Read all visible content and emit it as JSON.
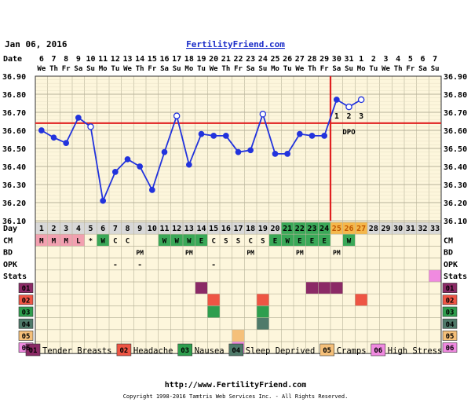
{
  "header": {
    "date": "Jan 06, 2016",
    "site": "FertilityFriend.com"
  },
  "footer": {
    "url": "http://www.FertilityFriend.com",
    "copyright": "Copyright 1998-2016 Tamtris Web Services Inc. - All Rights Reserved."
  },
  "colors": {
    "grid_bg": "#fdf6dc",
    "grid_line": "#b8b39a",
    "temp_line": "#2233dd",
    "coverline": "#e02020",
    "stat_01": "#8b2a66",
    "stat_02": "#ee5544",
    "stat_03": "#2e9e4e",
    "stat_04": "#4f7a6a",
    "stat_05": "#f5c07a",
    "stat_06": "#f08ae0",
    "cm_menstrual": "#f2a0b0",
    "cm_fertile": "#3aa858",
    "ovulation_days": "#f5b84c",
    "ovulation_days_text": "#c05800"
  },
  "chart_data": {
    "type": "line",
    "title": "",
    "ylim": [
      36.1,
      36.9
    ],
    "yticks": [
      "36.90",
      "36.80",
      "36.70",
      "36.60",
      "36.50",
      "36.40",
      "36.30",
      "36.20",
      "36.10"
    ],
    "row_labels": {
      "date": "Date",
      "day": "Day",
      "cm": "CM",
      "bd": "BD",
      "opk": "OPK",
      "stats": "Stats"
    },
    "dates": [
      "6",
      "7",
      "8",
      "9",
      "10",
      "11",
      "12",
      "13",
      "14",
      "15",
      "16",
      "17",
      "18",
      "19",
      "20",
      "21",
      "22",
      "23",
      "24",
      "25",
      "26",
      "27",
      "28",
      "29",
      "30",
      "31",
      "1",
      "2",
      "3",
      "4",
      "5",
      "6",
      "7"
    ],
    "weekdays": [
      "We",
      "Th",
      "Fr",
      "Sa",
      "Su",
      "Mo",
      "Tu",
      "We",
      "Th",
      "Fr",
      "Sa",
      "Su",
      "Mo",
      "Tu",
      "We",
      "Th",
      "Fr",
      "Sa",
      "Su",
      "Mo",
      "Tu",
      "We",
      "Th",
      "Fr",
      "Sa",
      "Su",
      "Mo",
      "Tu",
      "We",
      "Th",
      "Fr",
      "Sa",
      "Su"
    ],
    "days": [
      1,
      2,
      3,
      4,
      5,
      6,
      7,
      8,
      9,
      10,
      11,
      12,
      13,
      14,
      15,
      16,
      17,
      18,
      19,
      20,
      21,
      22,
      23,
      24,
      25,
      26,
      27,
      28,
      29,
      30,
      31,
      32,
      33
    ],
    "temps": [
      36.6,
      36.56,
      36.53,
      36.67,
      36.62,
      36.21,
      36.37,
      36.44,
      36.4,
      36.27,
      36.48,
      36.68,
      36.41,
      36.58,
      36.57,
      36.57,
      36.48,
      36.49,
      36.69,
      36.47,
      36.47,
      36.58,
      36.57,
      36.57,
      36.77,
      36.73,
      36.77,
      null,
      null,
      null,
      null,
      null,
      null
    ],
    "open_points": [
      4,
      11,
      18,
      25,
      26
    ],
    "coverline": 36.64,
    "ovulation_day": 24,
    "dpo_labels": [
      "1",
      "2",
      "3"
    ],
    "dpo_text": "DPO",
    "cm": [
      "M",
      "M",
      "M",
      "L",
      "*",
      "W",
      "C",
      "C",
      "",
      "",
      "W",
      "W",
      "W",
      "E",
      "C",
      "S",
      "S",
      "C",
      "S",
      "E",
      "W",
      "E",
      "E",
      "E",
      "",
      "W",
      "",
      "",
      "",
      "",
      "",
      "",
      ""
    ],
    "bd": [
      "",
      "",
      "",
      "",
      "",
      "",
      "",
      "",
      "PM",
      "",
      "",
      "",
      "PM",
      "",
      "",
      "",
      "",
      "PM",
      "",
      "",
      "",
      "PM",
      "",
      "",
      "PM",
      "",
      "",
      "",
      "",
      "",
      "",
      "",
      ""
    ],
    "opk": [
      "",
      "",
      "",
      "",
      "",
      "",
      "-",
      "",
      "-",
      "",
      "",
      "",
      "",
      "",
      "-",
      "",
      "",
      "",
      "",
      "",
      "",
      "",
      "",
      "",
      "",
      "",
      "",
      "",
      "",
      "",
      "",
      "",
      ""
    ],
    "stats": [
      "",
      "",
      "",
      "",
      "",
      "",
      "",
      "",
      "",
      "",
      "",
      "",
      "",
      "",
      "",
      "",
      "",
      "",
      "",
      "",
      "",
      "",
      "",
      "",
      "",
      "",
      "",
      "",
      "",
      "",
      "",
      "",
      "+"
    ],
    "symptoms": [
      {
        "code": "01",
        "name": "Tender Breasts",
        "days": [
          14,
          23,
          24,
          25
        ]
      },
      {
        "code": "02",
        "name": "Headache",
        "days": [
          15,
          19,
          27
        ]
      },
      {
        "code": "03",
        "name": "Nausea",
        "days": [
          15,
          19
        ]
      },
      {
        "code": "04",
        "name": "Sleep Deprived",
        "days": [
          19
        ]
      },
      {
        "code": "05",
        "name": "Cramps",
        "days": [
          17
        ]
      },
      {
        "code": "06",
        "name": "High Stress",
        "days": [
          17
        ]
      }
    ]
  }
}
